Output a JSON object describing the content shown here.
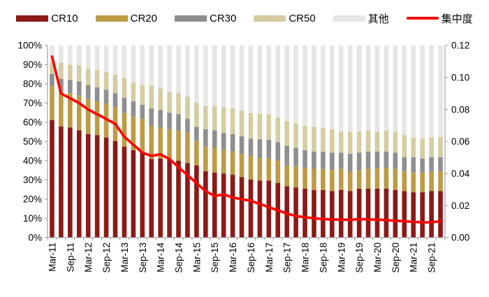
{
  "legend": [
    "CR10",
    "CR20",
    "CR30",
    "CR50",
    "其他",
    "集中度"
  ],
  "chart_data": {
    "type": "combo",
    "bar_type": "stacked-100-percent",
    "title": "",
    "categories": [
      "Mar-11",
      "Jun-11",
      "Sep-11",
      "Dec-11",
      "Mar-12",
      "Jun-12",
      "Sep-12",
      "Dec-12",
      "Mar-13",
      "Jun-13",
      "Sep-13",
      "Dec-13",
      "Mar-14",
      "Jun-14",
      "Sep-14",
      "Dec-14",
      "Mar-15",
      "Jun-15",
      "Sep-15",
      "Dec-15",
      "Mar-16",
      "Jun-16",
      "Sep-16",
      "Dec-16",
      "Mar-17",
      "Jun-17",
      "Sep-17",
      "Dec-17",
      "Mar-18",
      "Jun-18",
      "Sep-18",
      "Dec-18",
      "Mar-19",
      "Jun-19",
      "Sep-19",
      "Dec-19",
      "Mar-20",
      "Jun-20",
      "Sep-20",
      "Dec-20",
      "Mar-21",
      "Jun-21",
      "Sep-21",
      "Dec-21"
    ],
    "x_tick_labels_visible": [
      "Mar-11",
      "Sep-11",
      "Mar-12",
      "Sep-12",
      "Mar-13",
      "Sep-13",
      "Mar-14",
      "Sep-14",
      "Mar-15",
      "Sep-15",
      "Mar-16",
      "Sep-16",
      "Mar-17",
      "Sep-17",
      "Mar-18",
      "Sep-18",
      "Mar-19",
      "Sep-19",
      "Mar-20",
      "Sep-20",
      "Mar-21",
      "Sep-21"
    ],
    "x_tick_every": 2,
    "series": [
      {
        "name": "CR10",
        "axis": "left",
        "unit": "%",
        "note": "cumulative top-10 share, bottom bar segment",
        "values": [
          61.2,
          57.8,
          57.3,
          55.8,
          53.9,
          53.3,
          52.1,
          50.3,
          47.3,
          45.5,
          44.2,
          41.0,
          41.2,
          40.6,
          40.0,
          38.8,
          37.6,
          34.5,
          33.9,
          33.3,
          32.7,
          31.5,
          30.3,
          29.7,
          29.7,
          28.5,
          26.7,
          26.1,
          25.5,
          24.8,
          24.8,
          24.2,
          24.8,
          24.2,
          25.5,
          25.5,
          25.5,
          25.5,
          24.8,
          24.2,
          23.6,
          23.6,
          24.2,
          24.2
        ]
      },
      {
        "name": "CR20",
        "axis": "left",
        "unit": "%",
        "note": "cumulative top-20 share",
        "values": [
          78.8,
          75.8,
          75.2,
          73.9,
          72.1,
          70.9,
          69.7,
          67.9,
          64.8,
          63.0,
          61.8,
          58.2,
          57.3,
          56.4,
          55.8,
          54.5,
          50.3,
          47.3,
          46.7,
          45.5,
          44.8,
          43.6,
          42.4,
          41.5,
          41.2,
          40.0,
          37.6,
          37.0,
          36.4,
          35.8,
          35.8,
          35.2,
          35.8,
          34.5,
          35.2,
          35.8,
          36.4,
          36.4,
          35.8,
          34.5,
          33.9,
          33.9,
          34.5,
          34.5
        ]
      },
      {
        "name": "CR30",
        "axis": "left",
        "unit": "%",
        "note": "cumulative top-30 share",
        "values": [
          85.2,
          82.6,
          82.0,
          81.2,
          79.4,
          78.2,
          77.0,
          75.2,
          72.7,
          70.9,
          69.1,
          67.3,
          66.4,
          65.0,
          64.2,
          61.8,
          57.6,
          56.4,
          55.8,
          54.5,
          53.9,
          52.7,
          51.5,
          51.2,
          50.9,
          49.7,
          47.9,
          46.7,
          45.5,
          44.8,
          44.8,
          44.2,
          44.2,
          43.6,
          44.2,
          44.8,
          44.8,
          44.8,
          44.2,
          41.8,
          41.8,
          41.2,
          41.8,
          41.8
        ]
      },
      {
        "name": "CR50",
        "axis": "left",
        "unit": "%",
        "note": "cumulative top-50 share",
        "values": [
          91.5,
          90.9,
          90.0,
          89.7,
          87.9,
          87.3,
          86.1,
          84.8,
          83.0,
          80.6,
          79.4,
          78.9,
          77.6,
          75.8,
          75.2,
          73.3,
          70.3,
          68.5,
          68.5,
          67.9,
          67.3,
          66.1,
          64.8,
          64.5,
          64.2,
          62.4,
          60.6,
          59.4,
          58.2,
          57.6,
          57.0,
          56.4,
          55.2,
          55.2,
          55.2,
          55.8,
          55.2,
          55.8,
          55.2,
          53.3,
          52.1,
          51.5,
          52.1,
          52.4
        ]
      },
      {
        "name": "其他",
        "axis": "left",
        "unit": "%",
        "note": "remainder segment = 100 - CR50"
      }
    ],
    "line_series": {
      "name": "集中度",
      "axis": "right",
      "values": [
        0.113,
        0.09,
        0.087,
        0.084,
        0.08,
        0.077,
        0.074,
        0.071,
        0.063,
        0.058,
        0.053,
        0.051,
        0.052,
        0.049,
        0.044,
        0.039,
        0.034,
        0.029,
        0.026,
        0.027,
        0.025,
        0.024,
        0.023,
        0.021,
        0.019,
        0.017,
        0.015,
        0.0135,
        0.0127,
        0.0121,
        0.0116,
        0.0113,
        0.0112,
        0.0111,
        0.0115,
        0.0114,
        0.0112,
        0.0109,
        0.0105,
        0.0102,
        0.0098,
        0.0095,
        0.0096,
        0.0102
      ]
    },
    "left_axis": {
      "min": 0,
      "max": 100,
      "step": 10,
      "ticks": [
        "100%",
        "90%",
        "80%",
        "70%",
        "60%",
        "50%",
        "40%",
        "30%",
        "20%",
        "10%",
        "0%"
      ]
    },
    "right_axis": {
      "min": 0,
      "max": 0.12,
      "step": 0.02,
      "ticks": [
        "0.12",
        "0.10",
        "0.08",
        "0.06",
        "0.04",
        "0.02",
        "0.00"
      ]
    },
    "grid": "off",
    "legend_position": "top",
    "colors": {
      "CR10": "#8B1A17",
      "CR20": "#BD9B45",
      "CR30": "#8F8F8F",
      "CR50": "#D6CCA2",
      "其他": "#E6E6E4",
      "集中度": "#FF0000",
      "axis": "#A3A3A3",
      "text": "#000000"
    }
  }
}
